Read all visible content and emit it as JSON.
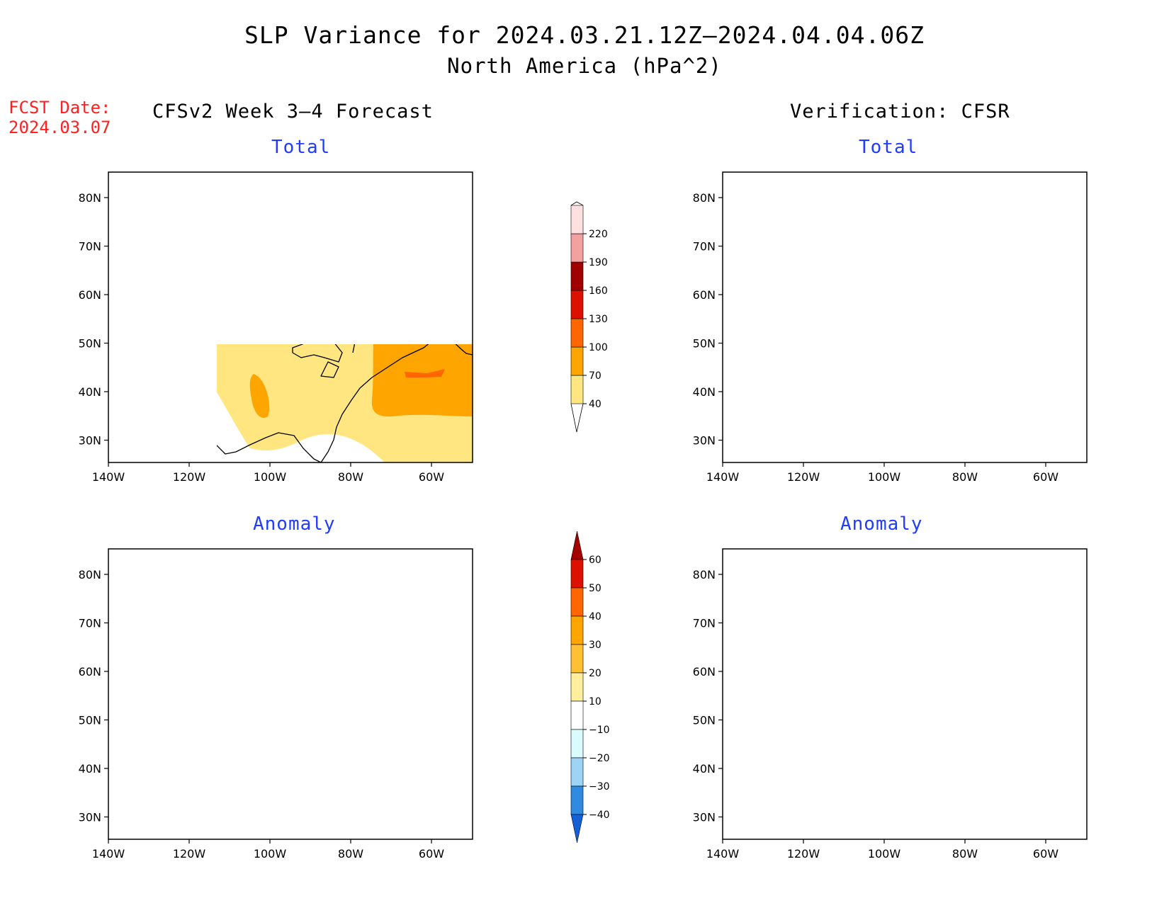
{
  "title": "SLP Variance for 2024.03.21.12Z–2024.04.04.06Z",
  "subtitle": "North America (hPa^2)",
  "fcst_date": {
    "label": "FCST Date:",
    "value": "2024.03.07"
  },
  "columns": {
    "left": "CFSv2 Week 3–4 Forecast",
    "right": "Verification: CFSR"
  },
  "panels": {
    "forecast_total": "Total",
    "verification_total": "Total",
    "forecast_anomaly": "Anomaly",
    "verification_anomaly": "Anomaly"
  },
  "axes": {
    "lat_labels": [
      "80N",
      "70N",
      "60N",
      "50N",
      "40N",
      "30N"
    ],
    "lon_labels": [
      "140W",
      "120W",
      "100W",
      "80W",
      "60W"
    ]
  },
  "colorbars": {
    "total": {
      "levels": [
        "40",
        "70",
        "100",
        "130",
        "160",
        "190",
        "220"
      ],
      "colors": [
        "#ffe680",
        "#ffa500",
        "#ff6600",
        "#dd1100",
        "#a00000",
        "#f2a0a0",
        "#ffe0e0"
      ]
    },
    "anomaly": {
      "levels": [
        "60",
        "50",
        "40",
        "30",
        "20",
        "10",
        "−10",
        "−20",
        "−30",
        "−40"
      ],
      "colors": [
        "#a50000",
        "#dd1100",
        "#ff6600",
        "#ffa500",
        "#ffc033",
        "#ffef9e",
        "#ffffff",
        "#dafcff",
        "#9dd3f5",
        "#2f8ae0",
        "#1560d6"
      ]
    }
  },
  "map_colors": {
    "land_outline": "#000000",
    "background": "#ffffff"
  }
}
